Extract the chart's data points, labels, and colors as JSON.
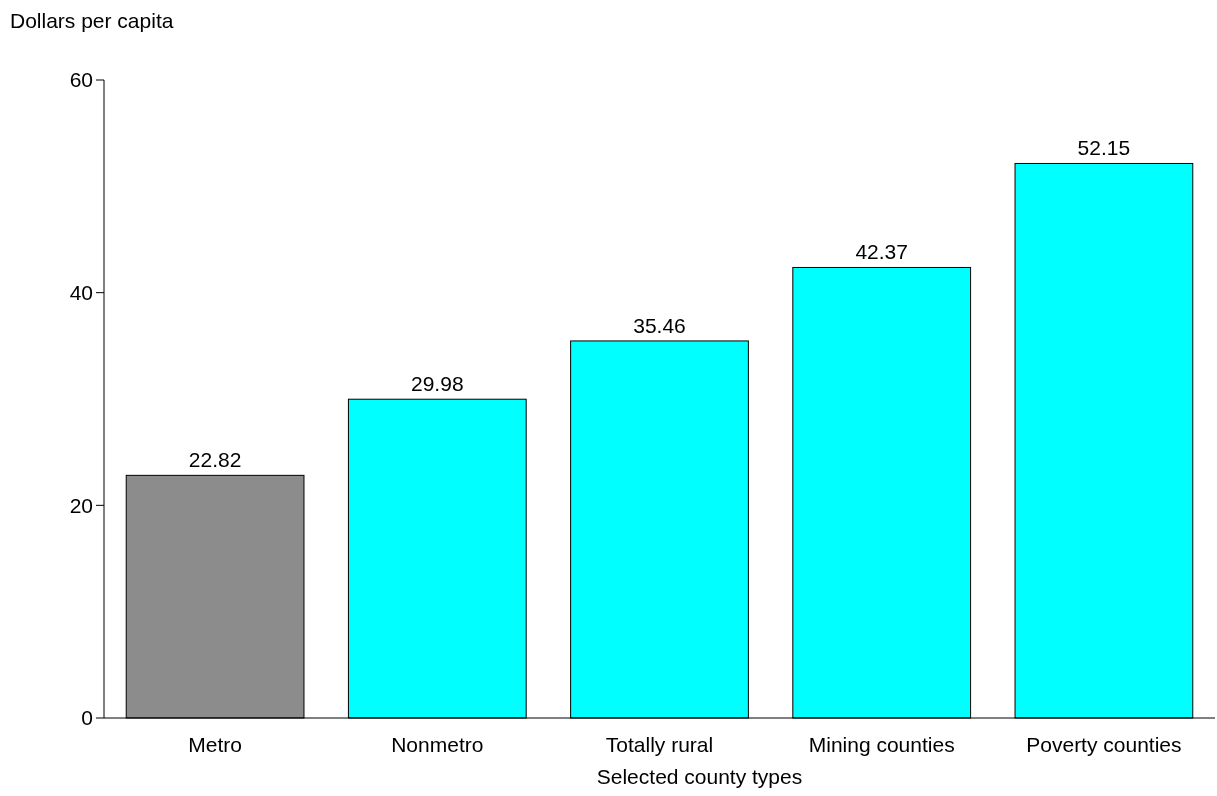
{
  "chart_data": {
    "type": "bar",
    "ylabel": "Dollars per capita",
    "xlabel": "Selected county types",
    "categories": [
      "Metro",
      "Nonmetro",
      "Totally rural",
      "Mining counties",
      "Poverty counties"
    ],
    "values": [
      22.82,
      29.98,
      35.46,
      42.37,
      52.15
    ],
    "colors": [
      "#8c8c8c",
      "#00ffff",
      "#00ffff",
      "#00ffff",
      "#00ffff"
    ],
    "ylim": [
      0,
      60
    ],
    "yticks": [
      0,
      20,
      40,
      60
    ],
    "data_labels": true
  }
}
